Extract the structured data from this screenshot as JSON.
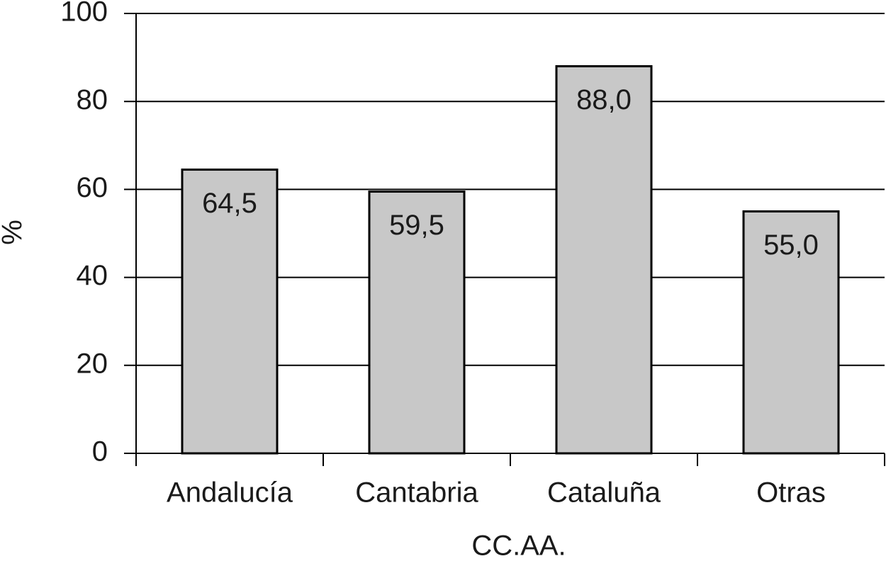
{
  "chart_data": {
    "type": "bar",
    "x_label": "CC.AA.",
    "y_label": "%",
    "categories": [
      "Andalucía",
      "Cantabria",
      "Cataluña",
      "Otras"
    ],
    "values": [
      64.5,
      59.5,
      88.0,
      55.0
    ],
    "value_labels": [
      "64,5",
      "59,5",
      "88,0",
      "55,0"
    ],
    "color": "#c8c8c8",
    "ylim": [
      0,
      100
    ],
    "yticks": [
      0,
      20,
      40,
      60,
      80,
      100
    ],
    "grid": true
  }
}
